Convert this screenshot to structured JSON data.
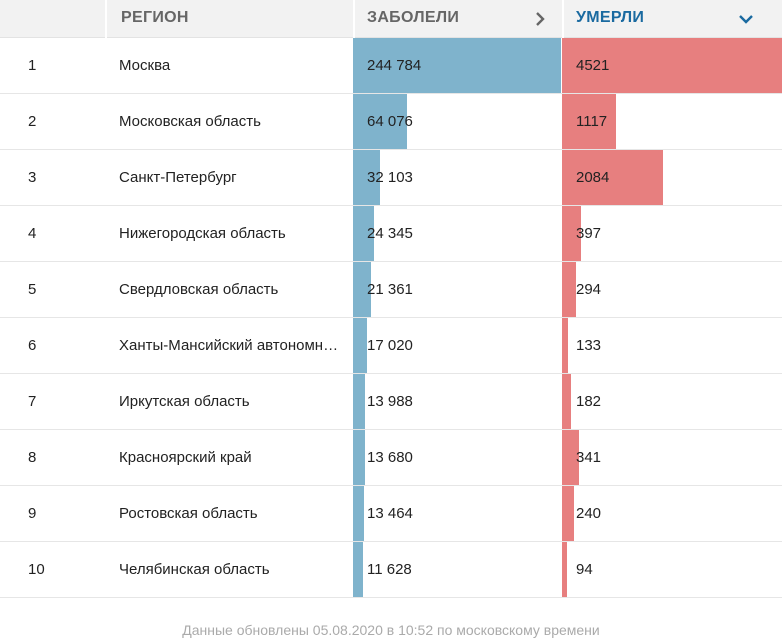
{
  "header": {
    "rank_label": "",
    "region_label": "РЕГИОН",
    "cases_label": "ЗАБОЛЕЛИ",
    "deaths_label": "УМЕРЛИ"
  },
  "colors": {
    "cases_bar": "#7fb3cc",
    "deaths_bar": "#e77f7f",
    "active_header": "#1a6aa0"
  },
  "rows": [
    {
      "rank": "1",
      "region": "Москва",
      "cases": "244 784",
      "cases_value": 244784,
      "deaths": "4521",
      "deaths_value": 4521
    },
    {
      "rank": "2",
      "region": "Московская область",
      "cases": "64 076",
      "cases_value": 64076,
      "deaths": "1117",
      "deaths_value": 1117
    },
    {
      "rank": "3",
      "region": "Санкт-Петербург",
      "cases": "32 103",
      "cases_value": 32103,
      "deaths": "2084",
      "deaths_value": 2084
    },
    {
      "rank": "4",
      "region": "Нижегородская область",
      "cases": "24 345",
      "cases_value": 24345,
      "deaths": "397",
      "deaths_value": 397
    },
    {
      "rank": "5",
      "region": "Свердловская область",
      "cases": "21 361",
      "cases_value": 21361,
      "deaths": "294",
      "deaths_value": 294
    },
    {
      "rank": "6",
      "region": "Ханты-Мансийский автономный округ",
      "cases": "17 020",
      "cases_value": 17020,
      "deaths": "133",
      "deaths_value": 133
    },
    {
      "rank": "7",
      "region": "Иркутская область",
      "cases": "13 988",
      "cases_value": 13988,
      "deaths": "182",
      "deaths_value": 182
    },
    {
      "rank": "8",
      "region": "Красноярский край",
      "cases": "13 680",
      "cases_value": 13680,
      "deaths": "341",
      "deaths_value": 341
    },
    {
      "rank": "9",
      "region": "Ростовская область",
      "cases": "13 464",
      "cases_value": 13464,
      "deaths": "240",
      "deaths_value": 240
    },
    {
      "rank": "10",
      "region": "Челябинская область",
      "cases": "11 628",
      "cases_value": 11628,
      "deaths": "94",
      "deaths_value": 94
    }
  ],
  "footer": {
    "updated_text": "Данные обновлены 05.08.2020 в 10:52 по московскому времени"
  }
}
